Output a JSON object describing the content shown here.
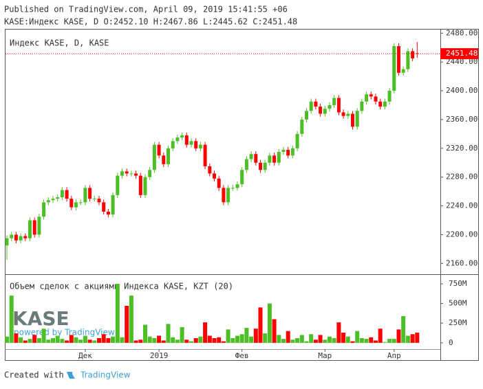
{
  "header": {
    "published": "Published on TradingView.com, April 09, 2019 15:41:55 +06",
    "legend": "KASE:Индекс KASE, D O:2452.10 H:2467.86 L:2445.62 C:2451.48"
  },
  "chart_data": {
    "type": "candlestick",
    "title": "Индекс KASE, D, KASE",
    "categories": [
      null,
      null,
      null,
      null,
      null,
      null,
      null,
      null,
      null,
      null,
      null,
      null,
      null,
      null,
      null,
      null,
      null,
      "Дек",
      null,
      null,
      null,
      null,
      null,
      null,
      null,
      null,
      null,
      null,
      null,
      null,
      null,
      null,
      null,
      "2019",
      null,
      null,
      null,
      null,
      null,
      null,
      null,
      null,
      null,
      null,
      null,
      null,
      null,
      null,
      null,
      null,
      null,
      "Фев",
      null,
      null,
      null,
      null,
      null,
      null,
      null,
      null,
      null,
      null,
      null,
      null,
      null,
      null,
      null,
      null,
      null,
      "Мар",
      null,
      null,
      null,
      null,
      null,
      null,
      null,
      null,
      null,
      null,
      null,
      null,
      null,
      null,
      "Апр",
      null,
      null,
      null,
      null,
      null
    ],
    "open": [
      2185,
      2195,
      2200,
      2192,
      2198,
      2195,
      2220,
      2200,
      2225,
      2245,
      2248,
      2250,
      2252,
      2262,
      2250,
      2238,
      2245,
      2245,
      2265,
      2250,
      2250,
      2245,
      2232,
      2228,
      2255,
      2282,
      2288,
      2285,
      2285,
      2282,
      2255,
      2280,
      2290,
      2325,
      2310,
      2298,
      2320,
      2330,
      2335,
      2338,
      2325,
      2330,
      2320,
      2325,
      2295,
      2285,
      2278,
      2265,
      2245,
      2265,
      2265,
      2270,
      2290,
      2305,
      2312,
      2300,
      2290,
      2300,
      2310,
      2300,
      2315,
      2318,
      2310,
      2320,
      2340,
      2360,
      2372,
      2385,
      2378,
      2368,
      2375,
      2380,
      2390,
      2370,
      2365,
      2368,
      2350,
      2372,
      2385,
      2395,
      2392,
      2385,
      2378,
      2385,
      2400,
      2462,
      2425,
      2430,
      2455,
      2452.1
    ],
    "high": [
      2199,
      2204,
      2204,
      2202,
      2202,
      2224,
      2224,
      2229,
      2249,
      2252,
      2254,
      2256,
      2266,
      2266,
      2254,
      2249,
      2249,
      2269,
      2269,
      2254,
      2254,
      2249,
      2236,
      2259,
      2286,
      2292,
      2292,
      2289,
      2289,
      2286,
      2284,
      2294,
      2329,
      2329,
      2314,
      2324,
      2334,
      2339,
      2342,
      2342,
      2334,
      2334,
      2329,
      2329,
      2299,
      2289,
      2282,
      2269,
      2269,
      2269,
      2274,
      2294,
      2309,
      2316,
      2316,
      2304,
      2304,
      2314,
      2314,
      2319,
      2322,
      2322,
      2324,
      2344,
      2364,
      2376,
      2389,
      2389,
      2382,
      2379,
      2384,
      2394,
      2394,
      2374,
      2372,
      2372,
      2376,
      2389,
      2399,
      2399,
      2396,
      2389,
      2389,
      2404,
      2466,
      2466,
      2434,
      2459,
      2459,
      2467.86
    ],
    "low": [
      2165,
      2191,
      2188,
      2188,
      2191,
      2191,
      2196,
      2196,
      2221,
      2241,
      2244,
      2246,
      2248,
      2246,
      2234,
      2234,
      2241,
      2241,
      2246,
      2246,
      2241,
      2228,
      2224,
      2224,
      2251,
      2278,
      2281,
      2281,
      2278,
      2251,
      2251,
      2276,
      2286,
      2306,
      2294,
      2294,
      2316,
      2326,
      2331,
      2321,
      2321,
      2316,
      2316,
      2291,
      2281,
      2274,
      2261,
      2241,
      2241,
      2261,
      2261,
      2266,
      2286,
      2301,
      2296,
      2286,
      2286,
      2296,
      2296,
      2296,
      2311,
      2306,
      2306,
      2316,
      2336,
      2356,
      2368,
      2374,
      2364,
      2364,
      2371,
      2376,
      2366,
      2361,
      2361,
      2346,
      2346,
      2368,
      2381,
      2388,
      2381,
      2374,
      2374,
      2381,
      2396,
      2421,
      2421,
      2426,
      2441,
      2445.62
    ],
    "close": [
      2195,
      2200,
      2192,
      2198,
      2195,
      2220,
      2200,
      2225,
      2245,
      2248,
      2250,
      2252,
      2262,
      2250,
      2238,
      2245,
      2245,
      2265,
      2250,
      2250,
      2245,
      2232,
      2228,
      2255,
      2282,
      2288,
      2285,
      2285,
      2282,
      2255,
      2280,
      2290,
      2325,
      2310,
      2298,
      2320,
      2330,
      2335,
      2338,
      2325,
      2330,
      2320,
      2325,
      2295,
      2285,
      2278,
      2265,
      2245,
      2265,
      2265,
      2270,
      2290,
      2305,
      2312,
      2300,
      2290,
      2300,
      2310,
      2300,
      2315,
      2318,
      2310,
      2320,
      2340,
      2360,
      2372,
      2385,
      2378,
      2368,
      2375,
      2380,
      2390,
      2370,
      2365,
      2368,
      2350,
      2372,
      2385,
      2395,
      2392,
      2385,
      2378,
      2385,
      2400,
      2462,
      2425,
      2430,
      2455,
      2445,
      2451.48
    ],
    "up_color": "#4cbf26",
    "down_color": "#ff0000",
    "ylim": [
      2146,
      2486
    ],
    "yticks": [
      {
        "value": 2160,
        "label": "2160.00"
      },
      {
        "value": 2200,
        "label": "2200.00"
      },
      {
        "value": 2240,
        "label": "2240.00"
      },
      {
        "value": 2280,
        "label": "2280.00"
      },
      {
        "value": 2320,
        "label": "2320.00"
      },
      {
        "value": 2360,
        "label": "2360.00"
      },
      {
        "value": 2400,
        "label": "2400.00"
      },
      {
        "value": 2440,
        "label": "2440.00"
      },
      {
        "value": 2480,
        "label": "2480.00"
      }
    ],
    "volume": {
      "title": "Объем сделок с акциями Индекса KASE, KZT (20)",
      "values": [
        80,
        600,
        120,
        70,
        30,
        50,
        100,
        60,
        180,
        40,
        60,
        90,
        50,
        30,
        100,
        70,
        40,
        90,
        40,
        30,
        60,
        110,
        60,
        80,
        750,
        70,
        470,
        600,
        30,
        40,
        230,
        80,
        60,
        90,
        30,
        240,
        70,
        40,
        200,
        40,
        20,
        60,
        80,
        260,
        90,
        60,
        70,
        20,
        170,
        60,
        90,
        110,
        190,
        80,
        180,
        450,
        120,
        500,
        300,
        100,
        50,
        150,
        40,
        60,
        100,
        20,
        110,
        40,
        100,
        40,
        80,
        60,
        260,
        130,
        80,
        20,
        150,
        60,
        50,
        70,
        30,
        180,
        10,
        50,
        50,
        170,
        340,
        90,
        110,
        130
      ],
      "ylim": [
        -80,
        863
      ],
      "yticks": [
        0,
        {
          "value": 250,
          "label": "250M"
        },
        {
          "value": 500,
          "label": "500M"
        },
        {
          "value": 750,
          "label": "750M"
        }
      ]
    }
  },
  "logo": {
    "name": "KASE",
    "powered": "powered by TradingView"
  },
  "footer": {
    "created": "Created with",
    "brand": "TradingView"
  }
}
